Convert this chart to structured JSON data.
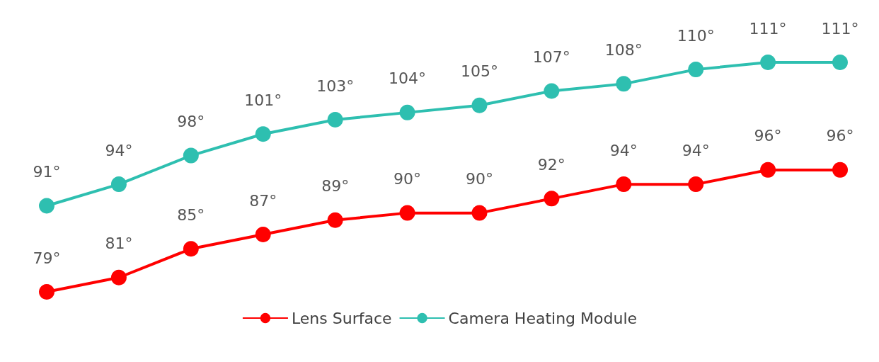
{
  "chart_data": {
    "type": "line",
    "categories": [
      null,
      null,
      null,
      null,
      null,
      null,
      null,
      null,
      null,
      null,
      null,
      null
    ],
    "series": [
      {
        "name": "Lens Surface",
        "color": "#ff0000",
        "values": [
          79,
          81,
          85,
          87,
          89,
          90,
          90,
          92,
          94,
          94,
          96,
          96
        ],
        "value_labels": [
          "79°",
          "81°",
          "85°",
          "87°",
          "89°",
          "90°",
          "90°",
          "92°",
          "94°",
          "94°",
          "96°",
          "96°"
        ]
      },
      {
        "name": "Camera Heating Module",
        "color": "#2ebfb0",
        "values": [
          91,
          94,
          98,
          101,
          103,
          104,
          105,
          107,
          108,
          110,
          111,
          111
        ],
        "value_labels": [
          "91°",
          "94°",
          "98°",
          "101°",
          "103°",
          "104°",
          "105°",
          "107°",
          "108°",
          "110°",
          "111°",
          "111°"
        ]
      }
    ],
    "marker": "circle",
    "legend": "bottom",
    "grid": false,
    "tick_labels": false
  }
}
